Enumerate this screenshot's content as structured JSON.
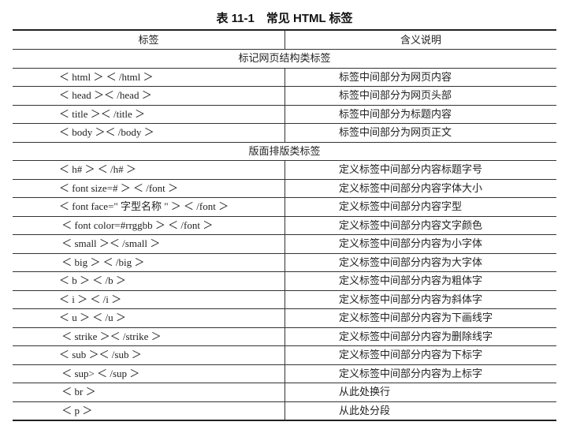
{
  "caption": "表 11-1　常见 HTML 标签",
  "header": {
    "col1": "标签",
    "col2": "含义说明"
  },
  "sections": [
    {
      "title": "标记网页结构类标签",
      "rows": [
        {
          "tag": "＜ html ＞ ＜ /html ＞",
          "desc": "标签中间部分为网页内容"
        },
        {
          "tag": "＜ head ＞＜ /head ＞",
          "desc": "标签中间部分为网页头部"
        },
        {
          "tag": "＜ title ＞＜ /title ＞",
          "desc": "标签中间部分为标题内容"
        },
        {
          "tag": "＜ body ＞＜ /body ＞",
          "desc": "标签中间部分为网页正文"
        }
      ]
    },
    {
      "title": "版面排版类标签",
      "rows": [
        {
          "tag": "＜ h# ＞ ＜ /h# ＞",
          "desc": "定义标签中间部分内容标题字号"
        },
        {
          "tag": "＜ font size=# ＞ ＜ /font ＞",
          "desc": "定义标签中间部分内容字体大小"
        },
        {
          "tag": "＜ font face=\" 字型名称 \" ＞ ＜ /font ＞",
          "desc": "定义标签中间部分内容字型"
        },
        {
          "tag": " ＜ font color=#rrggbb ＞ ＜ /font ＞",
          "desc": "定义标签中间部分内容文字颜色"
        },
        {
          "tag": " ＜ small ＞＜ /small ＞",
          "desc": "定义标签中间部分内容为小字体"
        },
        {
          "tag": " ＜ big ＞ ＜ /big ＞",
          "desc": "定义标签中间部分内容为大字体"
        },
        {
          "tag": "＜ b ＞ ＜ /b ＞",
          "desc": "定义标签中间部分内容为粗体字"
        },
        {
          "tag": "＜ i ＞ ＜ /i ＞",
          "desc": "定义标签中间部分内容为斜体字"
        },
        {
          "tag": "＜ u ＞ ＜ /u ＞",
          "desc": "定义标签中间部分内容为下画线字"
        },
        {
          "tag": " ＜ strike ＞＜ /strike ＞",
          "desc": "定义标签中间部分内容为删除线字"
        },
        {
          "tag": "＜ sub ＞＜ /sub ＞",
          "desc": "定义标签中间部分内容为下标字"
        },
        {
          "tag": " ＜ sup> ＜ /sup ＞",
          "desc": "定义标签中间部分内容为上标字"
        },
        {
          "tag": " ＜ br ＞",
          "desc": "从此处换行"
        },
        {
          "tag": " ＜ p ＞",
          "desc": "从此处分段"
        }
      ]
    }
  ]
}
